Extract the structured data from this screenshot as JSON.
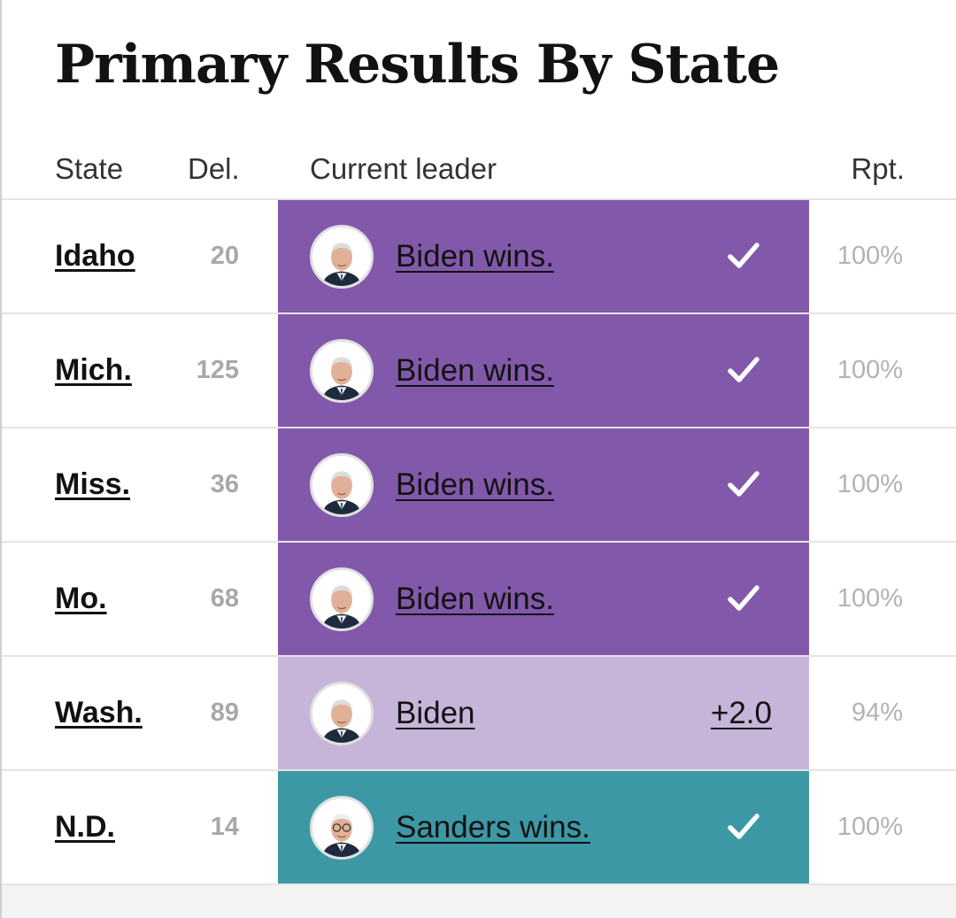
{
  "title": "Primary Results By State",
  "columns": {
    "state": "State",
    "delegates": "Del.",
    "leader": "Current leader",
    "reporting": "Rpt."
  },
  "colors": {
    "biden_win": "#8258AA",
    "biden_lead": "#C6B5D9",
    "sanders_win": "#3C98A5"
  },
  "rows": [
    {
      "state": "Idaho",
      "delegates": "20",
      "leader": "Biden wins.",
      "status": "win",
      "candidate": "biden",
      "margin": "",
      "reporting": "100%"
    },
    {
      "state": "Mich.",
      "delegates": "125",
      "leader": "Biden wins.",
      "status": "win",
      "candidate": "biden",
      "margin": "",
      "reporting": "100%"
    },
    {
      "state": "Miss.",
      "delegates": "36",
      "leader": "Biden wins.",
      "status": "win",
      "candidate": "biden",
      "margin": "",
      "reporting": "100%"
    },
    {
      "state": "Mo.",
      "delegates": "68",
      "leader": "Biden wins.",
      "status": "win",
      "candidate": "biden",
      "margin": "",
      "reporting": "100%"
    },
    {
      "state": "Wash.",
      "delegates": "89",
      "leader": "Biden",
      "status": "lead",
      "candidate": "biden",
      "margin": "+2.0",
      "reporting": "94%"
    },
    {
      "state": "N.D.",
      "delegates": "14",
      "leader": "Sanders wins.",
      "status": "win",
      "candidate": "sanders",
      "margin": "",
      "reporting": "100%"
    }
  ]
}
